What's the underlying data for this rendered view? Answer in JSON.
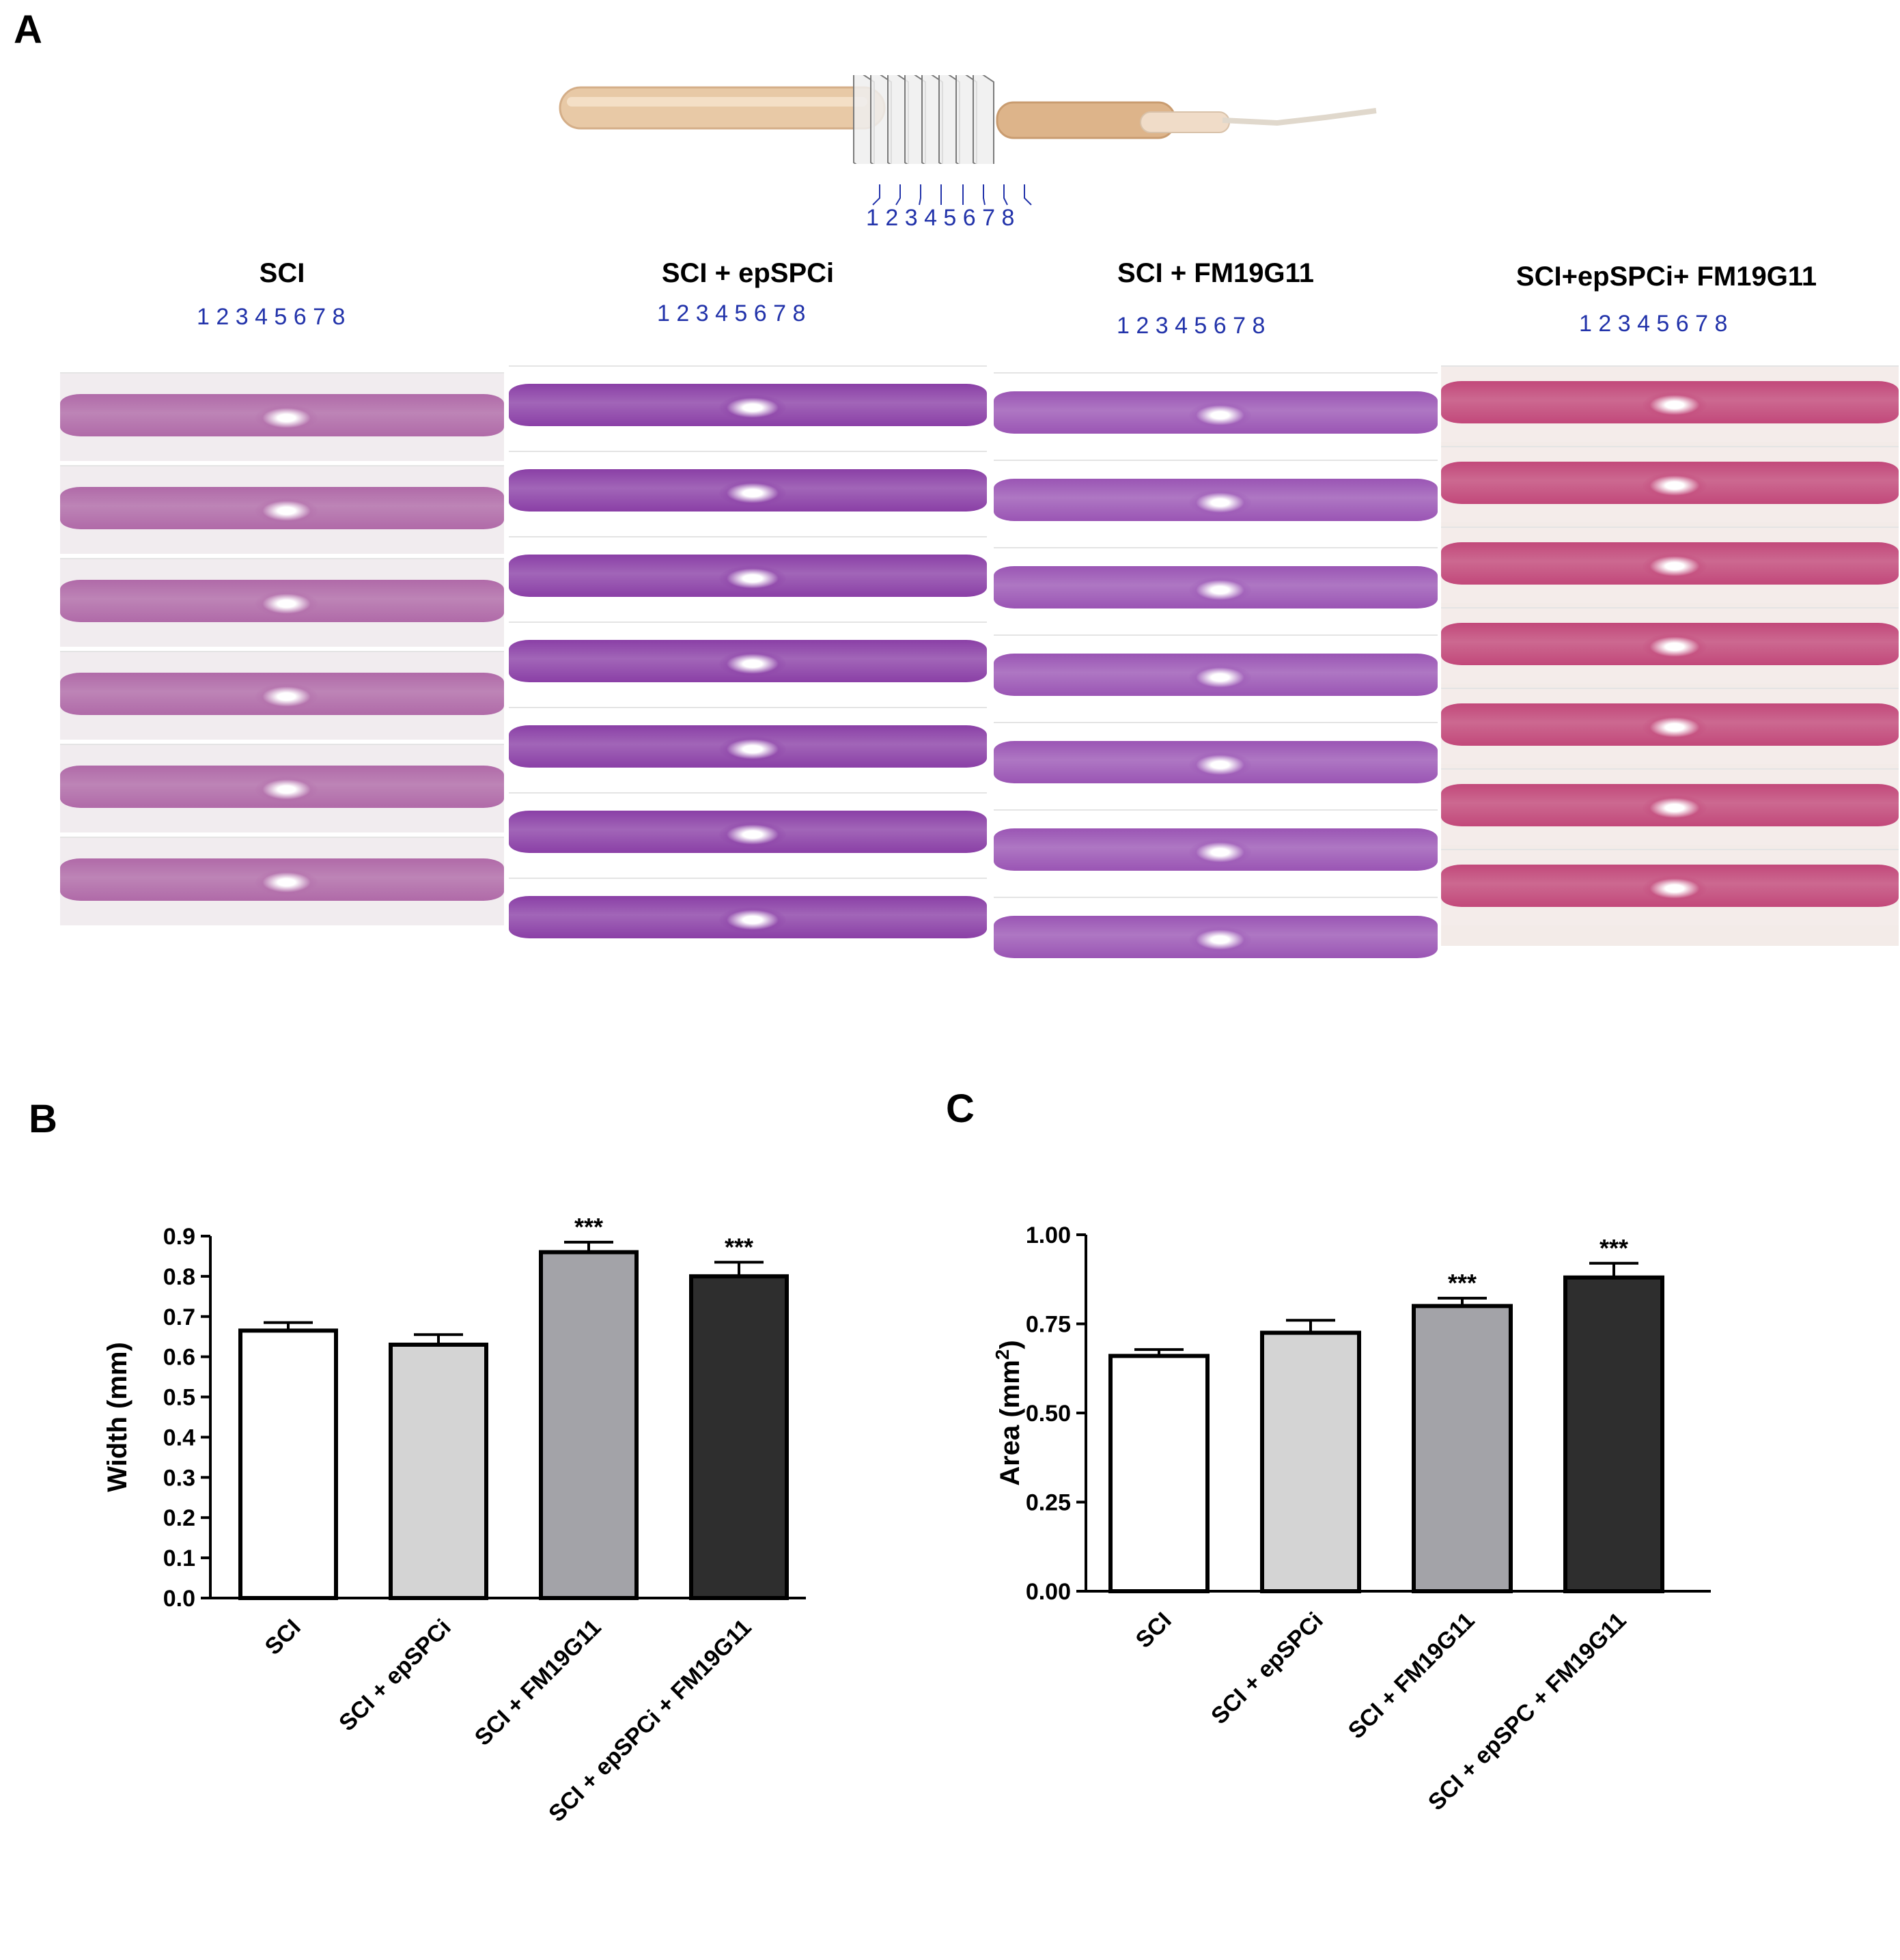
{
  "panels": {
    "A": "A",
    "B": "B",
    "C": "C"
  },
  "panelA": {
    "section_numbers": "1 2 3 4 5 6 7 8",
    "groups": [
      {
        "title": "SCI",
        "numbers": "1 2 3 4 5 6 7 8",
        "stain": "#b06aa8"
      },
      {
        "title": "SCI + epSPCi",
        "numbers": "1 2 3 4 5 6 7 8",
        "stain": "#8a3fa6"
      },
      {
        "title": "SCI + FM19G11",
        "numbers": "1 2 3 4 5 6 7 8",
        "stain": "#9a55b4"
      },
      {
        "title": "SCI+epSPCi+ FM19G11",
        "numbers": "1 2 3 4 5 6 7 8",
        "stain": "#c2487a"
      }
    ]
  },
  "chart_data": [
    {
      "type": "bar",
      "title": "",
      "xlabel": "",
      "ylabel": "Width (mm)",
      "categories": [
        "SCI",
        "SCI + epSPCi",
        "SCI + FM19G11",
        "SCI + epSPCi + FM19G11"
      ],
      "values": [
        0.665,
        0.63,
        0.86,
        0.8
      ],
      "errors": [
        0.02,
        0.025,
        0.025,
        0.035
      ],
      "significance": [
        "",
        "",
        "***",
        "***"
      ],
      "colors": [
        "#ffffff",
        "#d4d4d4",
        "#a3a3a8",
        "#2e2e2e"
      ],
      "ylim": [
        0,
        0.9
      ],
      "yticks": [
        "0.0",
        "0.1",
        "0.2",
        "0.3",
        "0.4",
        "0.5",
        "0.6",
        "0.7",
        "0.8",
        "0.9"
      ]
    },
    {
      "type": "bar",
      "title": "",
      "xlabel": "",
      "ylabel": "Area (mm2)",
      "categories": [
        "SCI",
        "SCI + epSPCi",
        "SCI + FM19G11",
        "SCI + epSPC + FM19G11"
      ],
      "values": [
        0.66,
        0.725,
        0.8,
        0.88
      ],
      "errors": [
        0.018,
        0.035,
        0.022,
        0.04
      ],
      "significance": [
        "",
        "",
        "***",
        "***"
      ],
      "colors": [
        "#ffffff",
        "#d4d4d4",
        "#a3a3a8",
        "#2e2e2e"
      ],
      "ylim": [
        0,
        1.0
      ],
      "yticks": [
        "0.00",
        "0.25",
        "0.50",
        "0.75",
        "1.00"
      ]
    }
  ]
}
